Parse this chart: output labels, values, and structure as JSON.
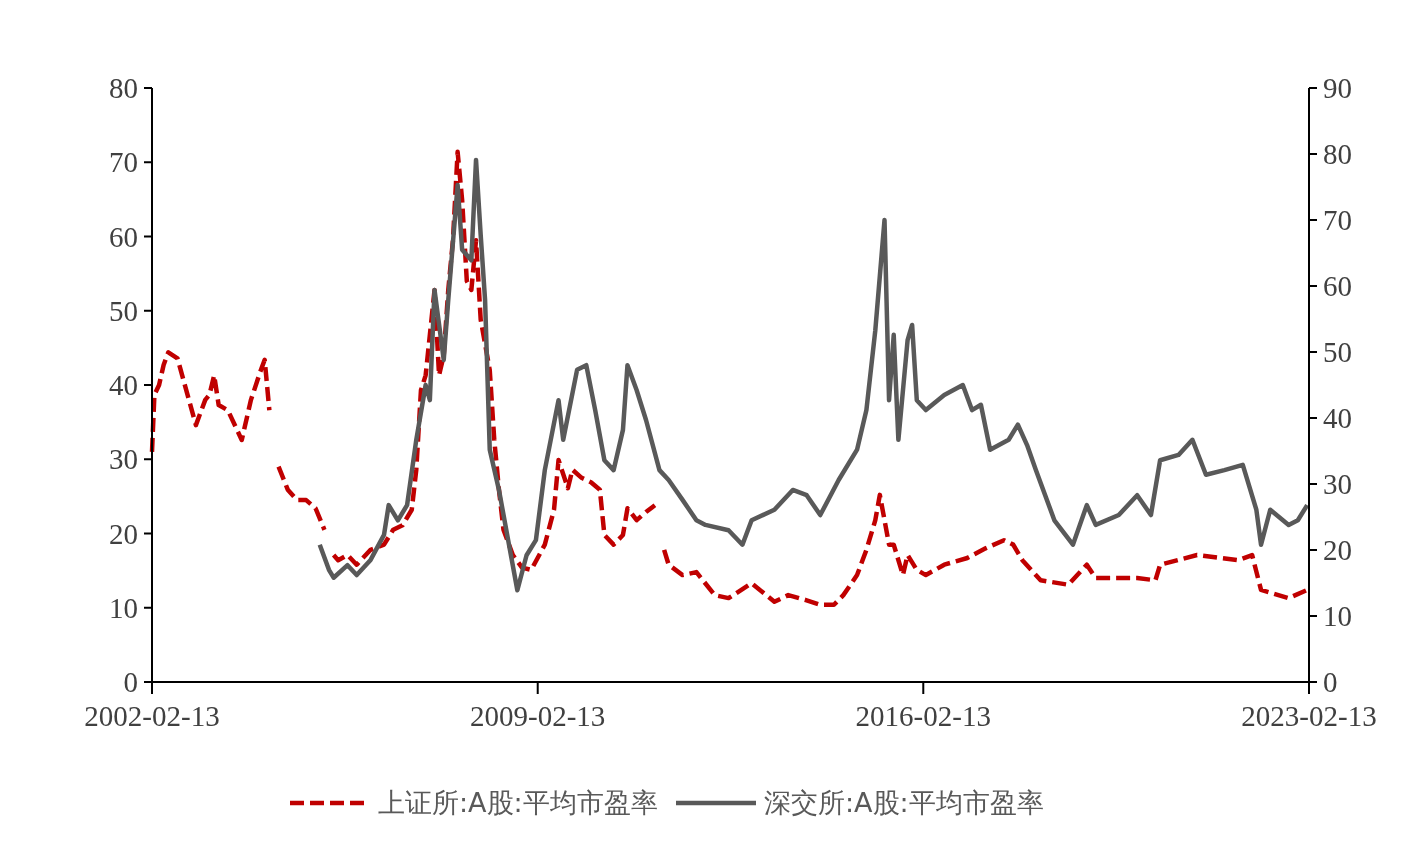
{
  "chart_data": {
    "type": "line",
    "xlim": [
      "2002-02-13",
      "2023-02-13"
    ],
    "xticks": [
      "2002-02-13",
      "2009-02-13",
      "2016-02-13",
      "2023-02-13"
    ],
    "ylim": [
      0,
      80
    ],
    "yticks": [
      0,
      10,
      20,
      30,
      40,
      50,
      60,
      70,
      80
    ],
    "y2lim": [
      0,
      90
    ],
    "y2ticks": [
      0,
      10,
      20,
      30,
      40,
      50,
      60,
      70,
      80,
      90
    ],
    "grid": false,
    "legend": "bottom",
    "series": [
      {
        "name": "上证所:A股:平均市盈率",
        "color": "#c00000",
        "line_style": "dashed",
        "x": [
          "2002-02-13",
          "2002-03",
          "2002-04",
          "2002-05",
          "2002-06",
          "2002-08",
          "2002-09",
          "2002-12",
          "2003-02",
          "2003-03",
          "2003-04",
          "2003-05",
          "2003-07",
          "2003-10",
          "2003-12",
          "2004-02",
          "2004-03",
          "2004-04",
          "2004-05",
          "2004-06",
          "2004-08",
          "2004-10",
          "2004-12",
          "2005-02",
          "2005-04",
          "2005-05",
          "2005-06",
          "2005-07",
          "2005-09",
          "2005-11",
          "2006-02",
          "2006-05",
          "2006-07",
          "2006-09",
          "2006-11",
          "2006-12",
          "2007-01",
          "2007-02",
          "2007-04",
          "2007-05",
          "2007-06",
          "2007-07",
          "2007-08",
          "2007-09",
          "2007-10",
          "2007-11",
          "2007-12",
          "2008-01",
          "2008-02",
          "2008-04",
          "2008-05",
          "2008-06",
          "2008-07",
          "2008-09",
          "2008-11",
          "2009-01",
          "2009-04",
          "2009-06",
          "2009-07",
          "2009-09",
          "2009-10",
          "2009-12",
          "2010-02",
          "2010-04",
          "2010-05",
          "2010-07",
          "2010-09",
          "2010-10",
          "2010-12",
          "2011-02",
          "2011-04",
          "2011-05",
          "2011-06",
          "2011-07",
          "2011-10",
          "2012-01",
          "2012-05",
          "2012-08",
          "2013-01",
          "2013-06",
          "2013-09",
          "2014-01",
          "2014-04",
          "2014-07",
          "2014-09",
          "2014-12",
          "2015-02",
          "2015-04",
          "2015-05",
          "2015-07",
          "2015-08",
          "2015-10",
          "2015-11",
          "2016-01",
          "2016-03",
          "2016-07",
          "2016-12",
          "2017-04",
          "2017-08",
          "2017-10",
          "2017-12",
          "2018-04",
          "2018-10",
          "2019-02",
          "2019-04",
          "2020-01",
          "2020-05",
          "2020-06",
          "2021-02",
          "2021-11",
          "2022-02",
          "2022-04",
          "2022-10",
          "2023-02"
        ],
        "values": [
          31,
          38.7,
          40,
          42.7,
          44.4,
          43.6,
          41.3,
          34.6,
          38,
          38.7,
          41.3,
          37.3,
          36.6,
          32.6,
          38,
          41.8,
          43.4,
          36.6,
          null,
          29,
          25.9,
          24.5,
          24.5,
          23.4,
          20.5,
          null,
          17.1,
          16.4,
          17.1,
          15.8,
          17.8,
          18.5,
          20.5,
          21.1,
          23.2,
          28.6,
          39.3,
          41.3,
          52.8,
          41.3,
          44,
          52.8,
          59.5,
          71.4,
          64.9,
          54,
          52.8,
          59.5,
          48.8,
          42,
          32.6,
          25.9,
          20.5,
          17.1,
          15.4,
          15.1,
          18.5,
          23.2,
          29.9,
          26.1,
          28.6,
          27.5,
          26.9,
          25.9,
          19.8,
          18.5,
          19.8,
          23.4,
          21.8,
          22.9,
          23.8,
          null,
          17.8,
          15.8,
          14.4,
          14.8,
          11.7,
          11.3,
          13.3,
          10.8,
          11.7,
          11,
          10.4,
          10.4,
          11.7,
          14.4,
          17.8,
          21.8,
          25.2,
          18.5,
          18.5,
          14.4,
          17.1,
          15.1,
          14.4,
          15.8,
          16.7,
          18,
          19.1,
          18.5,
          16.4,
          13.7,
          13.1,
          15.8,
          14,
          14,
          13.7,
          15.8,
          17.1,
          16.4,
          17.1,
          12.4,
          11.3,
          12.4
        ]
      },
      {
        "name": "深交所:A股:平均市盈率",
        "color": "#595959",
        "line_style": "solid",
        "axis": "y2",
        "x": [
          "2005-03",
          "2005-05",
          "2005-06",
          "2005-09",
          "2005-11",
          "2006-02",
          "2006-05",
          "2006-06",
          "2006-08",
          "2006-10",
          "2006-12",
          "2007-02",
          "2007-03",
          "2007-04",
          "2007-06",
          "2007-07",
          "2007-09",
          "2007-10",
          "2007-12",
          "2008-01",
          "2008-02",
          "2008-03",
          "2008-04",
          "2008-06",
          "2008-08",
          "2008-10",
          "2008-12",
          "2009-02",
          "2009-04",
          "2009-07",
          "2009-08",
          "2009-11",
          "2010-01",
          "2010-03",
          "2010-05",
          "2010-07",
          "2010-09",
          "2010-10",
          "2010-12",
          "2011-02",
          "2011-05",
          "2011-07",
          "2011-10",
          "2012-01",
          "2012-03",
          "2012-08",
          "2012-11",
          "2013-01",
          "2013-06",
          "2013-10",
          "2014-01",
          "2014-04",
          "2014-08",
          "2014-12",
          "2015-02",
          "2015-04",
          "2015-06",
          "2015-07",
          "2015-08",
          "2015-09",
          "2015-11",
          "2015-12",
          "2016-01",
          "2016-03",
          "2016-07",
          "2016-11",
          "2017-01",
          "2017-03",
          "2017-05",
          "2017-09",
          "2017-11",
          "2018-01",
          "2018-03",
          "2018-07",
          "2018-11",
          "2019-02",
          "2019-04",
          "2019-09",
          "2020-01",
          "2020-04",
          "2020-06",
          "2020-10",
          "2021-01",
          "2021-04",
          "2021-08",
          "2021-12",
          "2022-03",
          "2022-04",
          "2022-06",
          "2022-10",
          "2022-12",
          "2023-02"
        ],
        "values": [
          20.8,
          17,
          15.8,
          17.7,
          16.2,
          18.5,
          22.3,
          26.8,
          24.5,
          26.8,
          36.7,
          45,
          42.7,
          59.4,
          48.8,
          57.9,
          75.3,
          65.5,
          63.9,
          79.1,
          67.7,
          57.9,
          35.2,
          29.1,
          21.5,
          13.9,
          19.2,
          21.5,
          32.1,
          42.7,
          36.7,
          47.3,
          48,
          41.2,
          33.6,
          32.1,
          38.2,
          48,
          44.2,
          39.7,
          32.1,
          30.6,
          27.6,
          24.5,
          23.8,
          23,
          20.8,
          24.5,
          26.1,
          29.1,
          28.3,
          25.3,
          30.6,
          35.2,
          41.2,
          53.3,
          70,
          42.7,
          52.6,
          36.7,
          51.8,
          54.1,
          42.7,
          41.2,
          43.5,
          45,
          41.2,
          42,
          35.2,
          36.7,
          39,
          35.9,
          32.1,
          24.5,
          20.8,
          26.8,
          23.8,
          25.3,
          28.3,
          25.3,
          33.6,
          34.4,
          36.7,
          31.4,
          32.1,
          32.9,
          26.1,
          20.8,
          26.1,
          23.8,
          24.5,
          26.8
        ]
      }
    ]
  }
}
